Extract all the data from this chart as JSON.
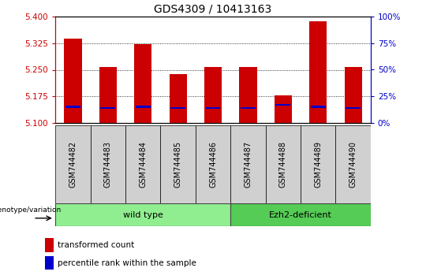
{
  "title": "GDS4309 / 10413163",
  "categories": [
    "GSM744482",
    "GSM744483",
    "GSM744484",
    "GSM744485",
    "GSM744486",
    "GSM744487",
    "GSM744488",
    "GSM744489",
    "GSM744490"
  ],
  "transformed_counts": [
    5.338,
    5.258,
    5.322,
    5.237,
    5.258,
    5.258,
    5.178,
    5.388,
    5.258
  ],
  "percentile_ranks": [
    15,
    14,
    15,
    14,
    14,
    14,
    17,
    15,
    14
  ],
  "ylim_left": [
    5.1,
    5.4
  ],
  "ylim_right": [
    0,
    100
  ],
  "yticks_left": [
    5.1,
    5.175,
    5.25,
    5.325,
    5.4
  ],
  "yticks_right": [
    0,
    25,
    50,
    75,
    100
  ],
  "bar_color": "#cc0000",
  "percentile_color": "#0000cc",
  "baseline": 5.1,
  "bar_width": 0.5,
  "wt_count": 5,
  "ez_count": 4,
  "group_colors": [
    "#90ee90",
    "#55cc55"
  ],
  "genotype_label": "genotype/variation",
  "legend_items": [
    "transformed count",
    "percentile rank within the sample"
  ],
  "bar_color_legend": "#cc0000",
  "pct_color_legend": "#0000cc",
  "axis_color_left": "#cc0000",
  "axis_color_right": "#0000cc",
  "xlabel_bg": "#d0d0d0",
  "title_fontsize": 10,
  "tick_fontsize": 7.5,
  "label_fontsize": 7,
  "legend_fontsize": 7.5
}
